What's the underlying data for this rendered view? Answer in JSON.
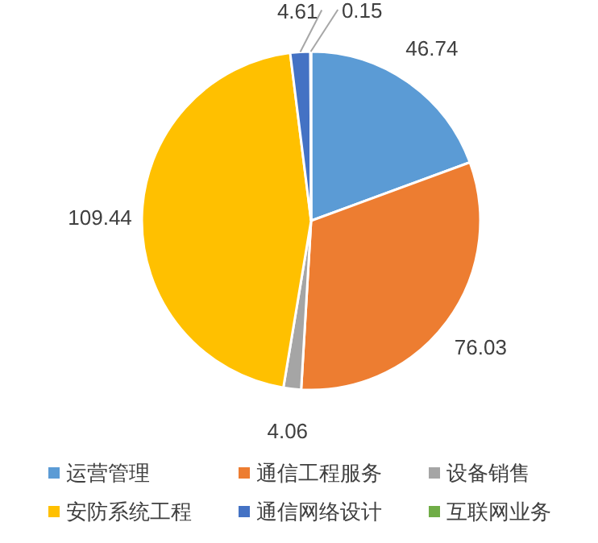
{
  "chart_data": {
    "type": "pie",
    "categories": [
      "运营管理",
      "通信工程服务",
      "设备销售",
      "安防系统工程",
      "通信网络设计",
      "互联网业务"
    ],
    "values": [
      46.74,
      76.03,
      4.06,
      109.44,
      4.61,
      0.15
    ],
    "colors": [
      "#5b9bd5",
      "#ed7d31",
      "#a5a5a5",
      "#ffc000",
      "#4472c4",
      "#70ad47"
    ],
    "data_labels": true,
    "legend": "bottom"
  }
}
